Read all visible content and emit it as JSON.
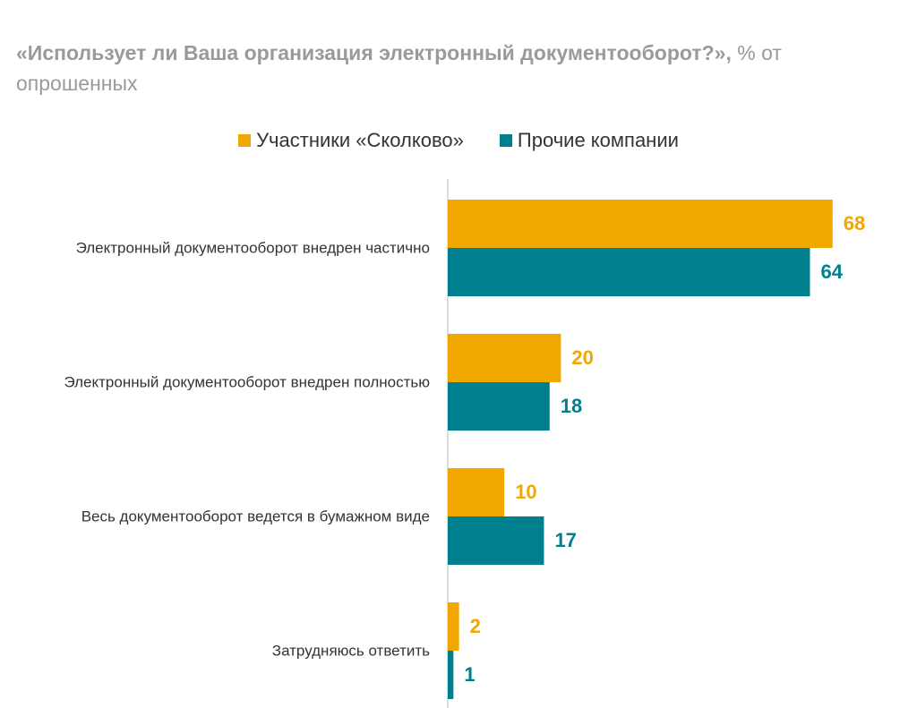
{
  "chart_data": {
    "type": "bar",
    "orientation": "horizontal",
    "title": "«Использует ли Ваша организация электронный документооборот?»,",
    "subtitle": "% от опрошенных",
    "categories": [
      "Электронный документооборот внедрен частично",
      "Электронный документооборот внедрен полностью",
      "Весь документооборот ведется в бумажном виде",
      "Затрудняюсь ответить"
    ],
    "series": [
      {
        "name": "Участники «Сколково»",
        "color": "#f0a800",
        "values": [
          68,
          20,
          10,
          2
        ]
      },
      {
        "name": "Прочие компании",
        "color": "#00808f",
        "values": [
          64,
          18,
          17,
          1
        ]
      }
    ]
  }
}
